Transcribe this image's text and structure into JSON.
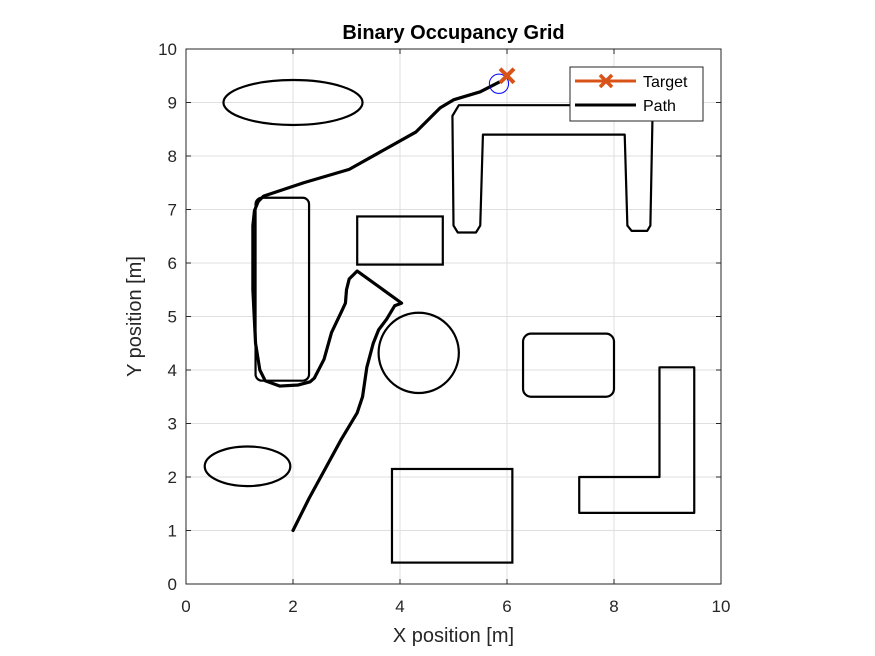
{
  "chart_data": {
    "type": "line",
    "title": "Binary Occupancy Grid",
    "xlabel": "X position [m]",
    "ylabel": "Y position [m]",
    "xlim": [
      0,
      10
    ],
    "ylim": [
      0,
      10
    ],
    "xticks": [
      0,
      2,
      4,
      6,
      8,
      10
    ],
    "yticks": [
      0,
      1,
      2,
      3,
      4,
      5,
      6,
      7,
      8,
      9,
      10
    ],
    "grid": true,
    "legend_position": "top-right",
    "legend": [
      {
        "label": "Target",
        "color": "#D95319",
        "marker": "x"
      },
      {
        "label": "Path",
        "color": "#000000"
      }
    ],
    "obstacles": [
      {
        "shape": "ellipse",
        "center": [
          2.0,
          9.0
        ],
        "radii": [
          1.3,
          0.42
        ]
      },
      {
        "shape": "ellipse",
        "center": [
          1.15,
          2.2
        ],
        "radii": [
          0.8,
          0.37
        ]
      },
      {
        "shape": "rounded_rect",
        "x0": 1.3,
        "y0": 3.8,
        "x1": 2.3,
        "y1": 7.22,
        "r": 0.12
      },
      {
        "shape": "rect",
        "x0": 3.2,
        "y0": 5.97,
        "x1": 4.8,
        "y1": 6.87
      },
      {
        "shape": "circle",
        "center": [
          4.35,
          4.32
        ],
        "r": 0.75
      },
      {
        "shape": "rounded_rect",
        "x0": 6.3,
        "y0": 3.5,
        "x1": 8.0,
        "y1": 4.68,
        "r": 0.15
      },
      {
        "shape": "rect",
        "x0": 3.85,
        "y0": 0.4,
        "x1": 6.1,
        "y1": 2.15
      },
      {
        "shape": "polygon",
        "points": [
          [
            7.35,
            1.33
          ],
          [
            9.5,
            1.33
          ],
          [
            9.5,
            4.05
          ],
          [
            8.85,
            4.05
          ],
          [
            8.85,
            2.0
          ],
          [
            7.35,
            2.0
          ]
        ]
      },
      {
        "shape": "polygon",
        "points": [
          [
            5.0,
            6.7
          ],
          [
            5.08,
            6.57
          ],
          [
            5.42,
            6.57
          ],
          [
            5.5,
            6.7
          ],
          [
            5.55,
            8.4
          ],
          [
            8.2,
            8.4
          ],
          [
            8.25,
            6.7
          ],
          [
            8.33,
            6.6
          ],
          [
            8.62,
            6.6
          ],
          [
            8.68,
            6.7
          ],
          [
            8.72,
            8.75
          ],
          [
            8.6,
            8.95
          ],
          [
            5.1,
            8.95
          ],
          [
            4.98,
            8.75
          ]
        ]
      }
    ],
    "path": {
      "name": "Path",
      "x": [
        2.0,
        2.3,
        2.6,
        2.9,
        3.2,
        3.3,
        3.38,
        3.5,
        3.6,
        3.75,
        3.9,
        4.03,
        3.2,
        3.05,
        3.0,
        2.98,
        2.92,
        2.72,
        2.58,
        2.4,
        2.32,
        2.1,
        1.75,
        1.48,
        1.38,
        1.3,
        1.25,
        1.25,
        1.28,
        1.35,
        1.45,
        2.2,
        3.05,
        4.3,
        4.75,
        5.0,
        5.5,
        5.85
      ],
      "y": [
        1.0,
        1.6,
        2.15,
        2.7,
        3.2,
        3.5,
        4.05,
        4.5,
        4.75,
        4.95,
        5.2,
        5.25,
        5.85,
        5.7,
        5.5,
        5.25,
        5.12,
        4.7,
        4.2,
        3.85,
        3.78,
        3.72,
        3.7,
        3.8,
        4.0,
        4.5,
        5.5,
        6.7,
        6.98,
        7.15,
        7.25,
        7.5,
        7.75,
        8.45,
        8.9,
        9.05,
        9.2,
        9.38
      ]
    },
    "target": {
      "name": "Target",
      "x": 6.0,
      "y": 9.5
    },
    "robot": {
      "x": 5.85,
      "y": 9.35,
      "r": 0.18,
      "color": "#0000FF"
    }
  }
}
